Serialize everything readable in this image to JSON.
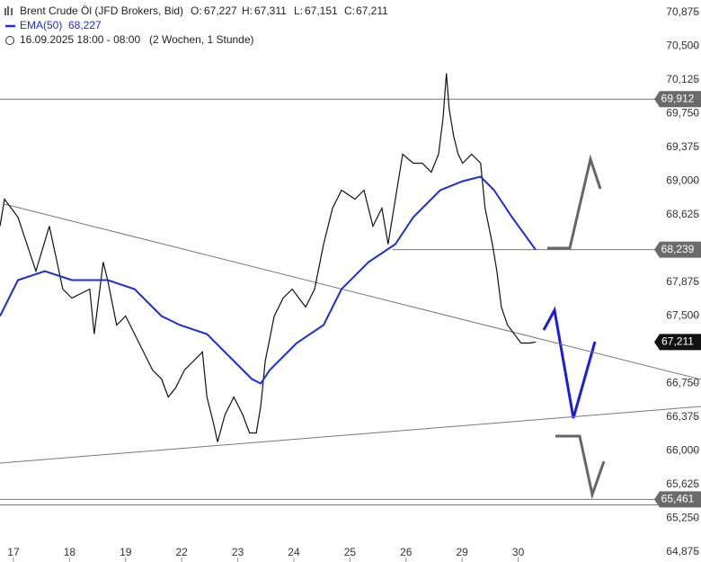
{
  "chart_data": {
    "type": "line",
    "title": "Brent Crude Öl (JFD Brokers, Bid)",
    "ohlc_labels": [
      "O:",
      "H:",
      "L:",
      "C:"
    ],
    "ohlc_values": [
      {
        "value": 67.227,
        "label": "67,227"
      },
      {
        "value": 67.311,
        "label": "67,311"
      },
      {
        "value": 67.151,
        "label": "67,151"
      },
      {
        "value": 67.211,
        "label": "67,211"
      }
    ],
    "date_range": "16.09.2025 18:00 - 08:00",
    "period": "(2 Wochen, 1 Stunde)",
    "xlim": [
      -0.24,
      12.26
    ],
    "ylim": [
      64.765,
      71.015
    ],
    "xticks": [
      {
        "value": 0,
        "label": "17"
      },
      {
        "value": 1,
        "label": "18"
      },
      {
        "value": 2,
        "label": "19"
      },
      {
        "value": 3,
        "label": "22"
      },
      {
        "value": 4,
        "label": "23"
      },
      {
        "value": 5,
        "label": "24"
      },
      {
        "value": 6,
        "label": "25"
      },
      {
        "value": 7,
        "label": "26"
      },
      {
        "value": 8,
        "label": "29"
      },
      {
        "value": 9,
        "label": "30"
      }
    ],
    "yticks": [
      {
        "value": 64.875,
        "label": "64,875"
      },
      {
        "value": 65.25,
        "label": "65,250"
      },
      {
        "value": 65.625,
        "label": "65,625"
      },
      {
        "value": 66.0,
        "label": "66,000"
      },
      {
        "value": 66.375,
        "label": "66,375"
      },
      {
        "value": 66.75,
        "label": "66,750"
      },
      {
        "value": 67.5,
        "label": "67,500"
      },
      {
        "value": 67.875,
        "label": "67,875"
      },
      {
        "value": 68.625,
        "label": "68,625"
      },
      {
        "value": 69.0,
        "label": "69,000"
      },
      {
        "value": 69.375,
        "label": "69,375"
      },
      {
        "value": 69.75,
        "label": "69,750"
      },
      {
        "value": 70.125,
        "label": "70,125"
      },
      {
        "value": 70.5,
        "label": "70,500"
      },
      {
        "value": 70.875,
        "label": "70,875"
      }
    ],
    "series": [
      {
        "name": "Brent Crude Öl",
        "color": "#111111",
        "x": [
          -0.24,
          -0.16,
          0.08,
          0.4,
          0.64,
          0.88,
          1.04,
          1.36,
          1.44,
          1.6,
          1.68,
          1.84,
          2.0,
          2.16,
          2.32,
          2.48,
          2.64,
          2.76,
          2.89,
          3.05,
          3.21,
          3.37,
          3.45,
          3.57,
          3.64,
          3.77,
          3.93,
          4.09,
          4.21,
          4.33,
          4.41,
          4.49,
          4.65,
          4.81,
          4.97,
          5.21,
          5.37,
          5.53,
          5.69,
          5.85,
          6.09,
          6.25,
          6.41,
          6.57,
          6.68,
          6.81,
          6.94,
          7.13,
          7.29,
          7.45,
          7.58,
          7.66,
          7.72,
          7.77,
          7.85,
          7.93,
          8.01,
          8.17,
          8.33,
          8.41,
          8.54,
          8.62,
          8.7,
          8.81,
          8.93,
          9.05,
          9.21,
          9.31
        ],
        "values": [
          68.5,
          68.8,
          68.6,
          68.0,
          68.5,
          67.8,
          67.7,
          67.8,
          67.3,
          68.1,
          67.9,
          67.4,
          67.5,
          67.3,
          67.1,
          66.9,
          66.8,
          66.6,
          66.7,
          66.9,
          67.0,
          67.1,
          66.6,
          66.3,
          66.1,
          66.4,
          66.6,
          66.4,
          66.2,
          66.2,
          66.5,
          67.0,
          67.5,
          67.7,
          67.8,
          67.6,
          67.8,
          68.3,
          68.7,
          68.9,
          68.8,
          68.9,
          68.5,
          68.7,
          68.3,
          68.8,
          69.3,
          69.2,
          69.2,
          69.1,
          69.3,
          69.7,
          70.2,
          69.8,
          69.5,
          69.3,
          69.2,
          69.3,
          69.2,
          68.7,
          68.3,
          68.0,
          67.6,
          67.4,
          67.3,
          67.2,
          67.2,
          67.211
        ]
      },
      {
        "name": "EMA(50)",
        "color": "#1c2fd6",
        "legend_value": {
          "value": 68.227,
          "label": "68,227"
        },
        "x": [
          -0.24,
          0.08,
          0.56,
          1.04,
          1.68,
          2.16,
          2.64,
          2.97,
          3.45,
          3.93,
          4.25,
          4.41,
          4.57,
          5.05,
          5.53,
          5.85,
          6.33,
          6.81,
          7.13,
          7.61,
          8.01,
          8.33,
          8.57,
          8.89,
          9.31
        ],
        "values": [
          67.5,
          67.9,
          68.0,
          67.9,
          67.9,
          67.8,
          67.5,
          67.4,
          67.3,
          67.0,
          66.8,
          66.75,
          66.9,
          67.2,
          67.4,
          67.8,
          68.1,
          68.3,
          68.6,
          68.9,
          69.0,
          69.05,
          68.9,
          68.6,
          68.239
        ]
      }
    ],
    "levels": [
      {
        "value": 69.912,
        "label": "69,912",
        "color": "#6b6b6b",
        "from": -0.24
      },
      {
        "value": 68.239,
        "label": "68,239",
        "color": "#6b6b6b",
        "from": 6.76
      },
      {
        "value": 67.211,
        "label": "67,211",
        "color": "#111111"
      },
      {
        "value": 65.461,
        "label": "65,461",
        "color": "#6b6b6b",
        "from": -0.24
      }
    ],
    "trendlines": [
      {
        "x": [
          -0.16,
          12.26
        ],
        "values": [
          68.745,
          66.795
        ]
      },
      {
        "x": [
          -0.24,
          12.26
        ],
        "values": [
          65.865,
          66.495
        ]
      },
      {
        "x": [
          -0.24,
          12.26
        ],
        "values": [
          65.4,
          65.4
        ]
      }
    ]
  }
}
